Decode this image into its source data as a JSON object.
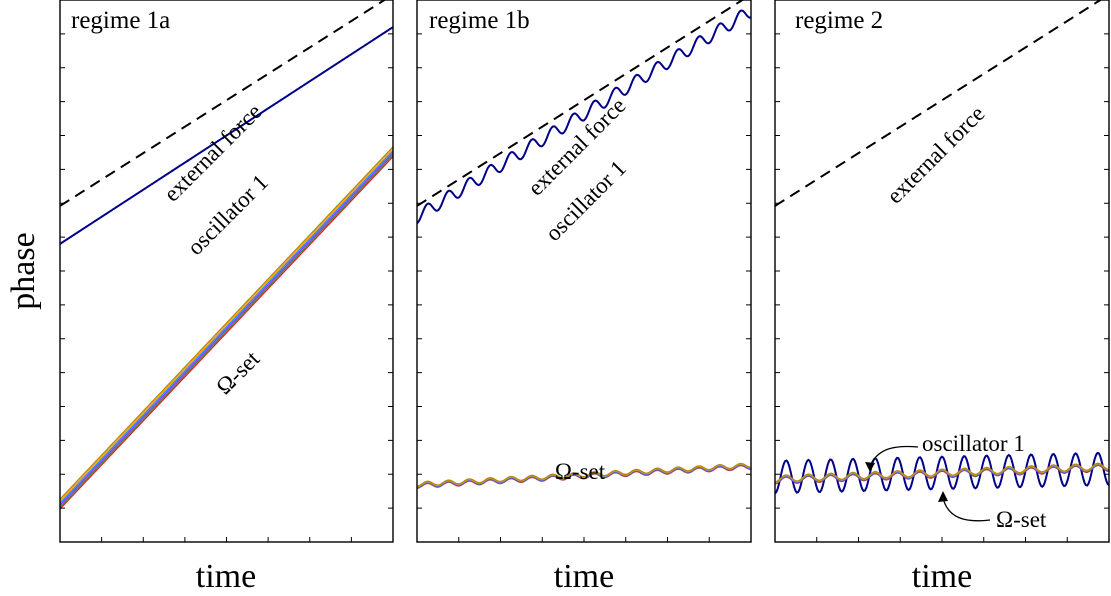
{
  "figure": {
    "ylabel": "phase"
  },
  "colors": {
    "force": "#000000",
    "oscillator": "#00008b",
    "omega_set": [
      "#e02020",
      "#2e8b57",
      "#9b30ff",
      "#1e90ff",
      "#ffa500",
      "#b8860b"
    ]
  },
  "chart_data": [
    {
      "type": "line",
      "title": "regime 1a",
      "xlabel": "time",
      "ylabel": "phase",
      "grid": false,
      "axes_ticks_labeled": false,
      "series": [
        {
          "key": "force",
          "style": "dashed",
          "kind": "linear",
          "start": 0.62,
          "end": 1.01
        },
        {
          "key": "oscillator",
          "style": "solid",
          "kind": "linear",
          "start": 0.55,
          "end": 0.95
        },
        {
          "key": "omega",
          "style": "solid",
          "kind": "linear",
          "start": 0.07,
          "end": 0.72,
          "count": 6,
          "spread": 0.018
        }
      ],
      "annotations": [
        {
          "text": "external force",
          "target": "force"
        },
        {
          "text": "oscillator 1",
          "target": "oscillator"
        },
        {
          "text": "Ω-set",
          "target": "omega"
        }
      ]
    },
    {
      "type": "line",
      "title": "regime 1b",
      "xlabel": "time",
      "ylabel": "phase",
      "grid": false,
      "axes_ticks_labeled": false,
      "series": [
        {
          "key": "force",
          "style": "dashed",
          "kind": "linear",
          "start": 0.62,
          "end": 1.01
        },
        {
          "key": "oscillator",
          "style": "solid",
          "kind": "wavy",
          "start": 0.6,
          "end": 0.98,
          "amplitude": 0.012,
          "periods": 16
        },
        {
          "key": "omega",
          "style": "solid",
          "kind": "wavy",
          "start": 0.105,
          "end": 0.14,
          "amplitude": 0.004,
          "periods": 16,
          "count": 6,
          "spread": 0.004
        }
      ],
      "annotations": [
        {
          "text": "external force",
          "target": "force"
        },
        {
          "text": "oscillator 1",
          "target": "oscillator"
        },
        {
          "text": "Ω-set",
          "target": "omega"
        }
      ]
    },
    {
      "type": "line",
      "title": "regime 2",
      "xlabel": "time",
      "ylabel": "phase",
      "grid": false,
      "axes_ticks_labeled": false,
      "series": [
        {
          "key": "force",
          "style": "dashed",
          "kind": "linear",
          "start": 0.62,
          "end": 1.01
        },
        {
          "key": "oscillator",
          "style": "solid",
          "kind": "wavy",
          "start": 0.12,
          "end": 0.135,
          "amplitude": 0.03,
          "periods": 15
        },
        {
          "key": "omega",
          "style": "solid",
          "kind": "wavy",
          "start": 0.115,
          "end": 0.138,
          "amplitude": 0.006,
          "periods": 15,
          "count": 6,
          "spread": 0.004
        }
      ],
      "annotations": [
        {
          "text": "external force",
          "target": "force"
        },
        {
          "text": "oscillator 1",
          "target": "oscillator",
          "arrow": true
        },
        {
          "text": "Ω-set",
          "target": "omega",
          "arrow": true
        }
      ]
    }
  ]
}
